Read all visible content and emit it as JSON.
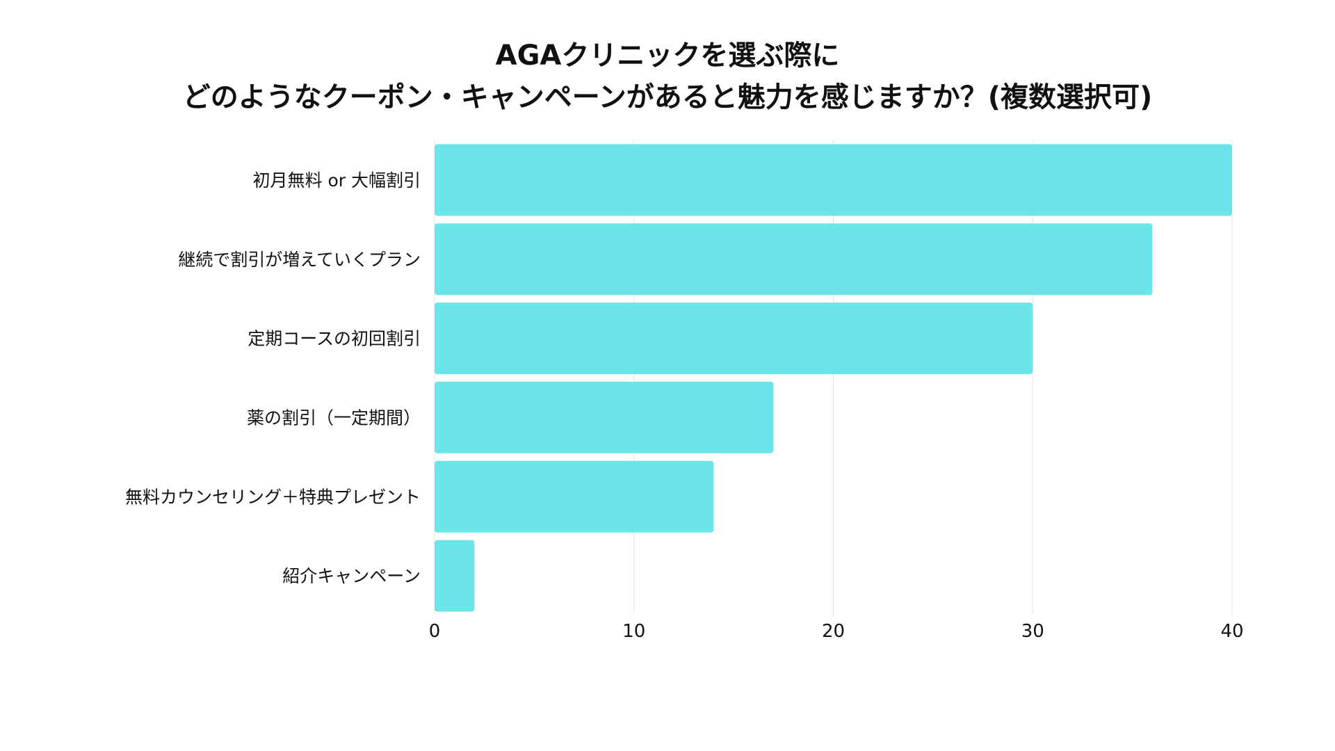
{
  "chart_data": {
    "type": "bar",
    "orientation": "horizontal",
    "title_lines": [
      "AGAクリニックを選ぶ際に",
      "どのようなクーポン・キャンペーンがあると魅力を感じますか？(複数選択可)"
    ],
    "categories": [
      "初月無料 or 大幅割引",
      "継続で割引が増えていくプラン",
      "定期コースの初回割引",
      "薬の割引（一定期間）",
      "無料カウンセリング＋特典プレゼント",
      "紹介キャンペーン"
    ],
    "values": [
      40,
      36,
      30,
      17,
      14,
      2
    ],
    "xlim": [
      0,
      40
    ],
    "xticks": [
      "0",
      "10",
      "20",
      "30",
      "40"
    ],
    "grid": true,
    "legend": "none",
    "colors": {
      "bar": "#6ce5e8",
      "grid": "#e3e3e3",
      "text": "#111111"
    }
  }
}
